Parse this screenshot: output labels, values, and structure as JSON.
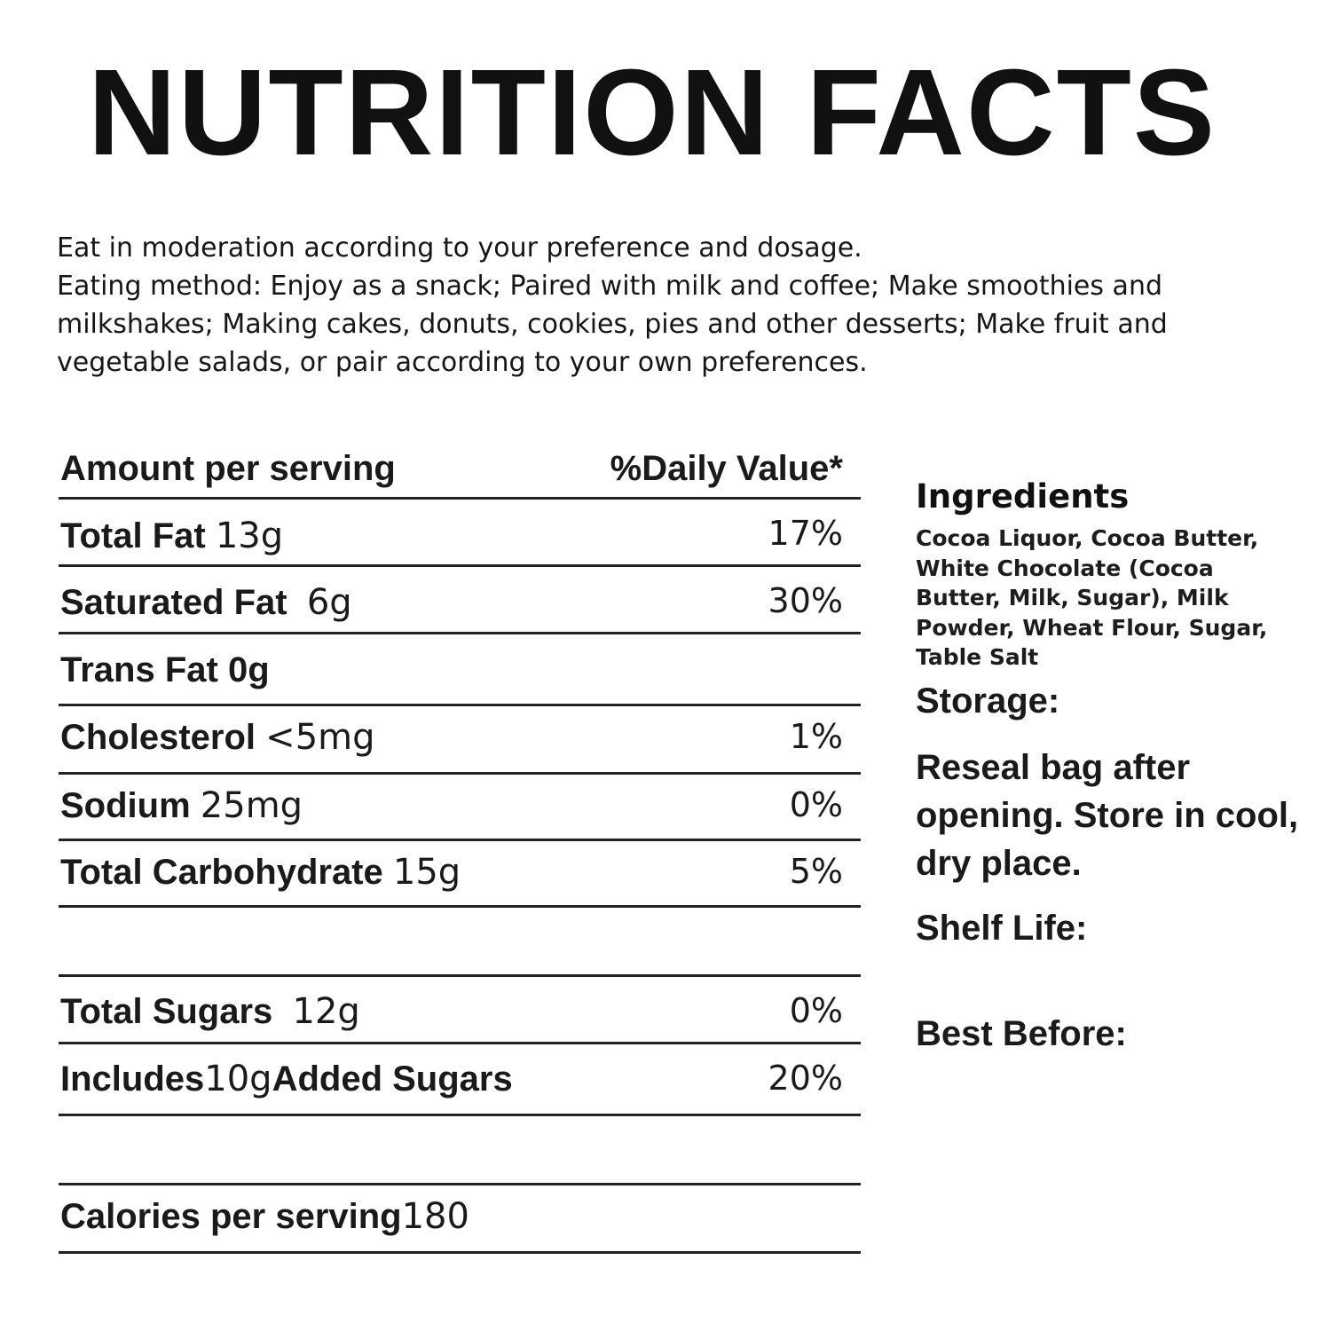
{
  "title": "NUTRITION FACTS",
  "intro": {
    "line1": "Eat in moderation according to your preference and dosage.",
    "line2": "Eating method: Enjoy as a snack; Paired with milk and coffee; Make smoothies and milkshakes; Making cakes, donuts, cookies, pies and other desserts; Make fruit and vegetable salads, or pair according to your own preferences."
  },
  "table": {
    "header": {
      "label": "Amount per serving",
      "dv": "%Daily Value*"
    },
    "rows": [
      {
        "name": "Total Fat",
        "amount": "13g",
        "dv": "17%"
      },
      {
        "name": "Saturated Fat",
        "amount": "6g",
        "dv": "30%"
      },
      {
        "name": "Trans Fat 0g",
        "amount": "",
        "dv": ""
      },
      {
        "name": "Cholesterol",
        "amount": "<5mg",
        "dv": "1%"
      },
      {
        "name": "Sodium",
        "amount": "25mg",
        "dv": "0%"
      },
      {
        "name": "Total Carbohydrate",
        "amount": "15g",
        "dv": "5%"
      },
      {
        "name": "",
        "amount": "",
        "dv": ""
      },
      {
        "name": "Total Sugars",
        "amount": "12g",
        "dv": "0%"
      },
      {
        "name": "Includes",
        "amount": "10g",
        "suffix": "Added Sugars",
        "dv": "20%"
      },
      {
        "name": "",
        "amount": "",
        "dv": ""
      },
      {
        "name": "Calories per serving",
        "amount": "180",
        "dv": ""
      }
    ]
  },
  "ingredients": {
    "title": "Ingredients",
    "text": "Cocoa Liquor, Cocoa Butter, White Chocolate (Cocoa Butter, Milk, Sugar), Milk Powder, Wheat Flour, Sugar, Table Salt"
  },
  "storage": {
    "label": "Storage:",
    "text": "Reseal bag after opening. Store in cool, dry place."
  },
  "shelf_life": {
    "label": "Shelf Life:"
  },
  "best_before": {
    "label": "Best Before:"
  }
}
